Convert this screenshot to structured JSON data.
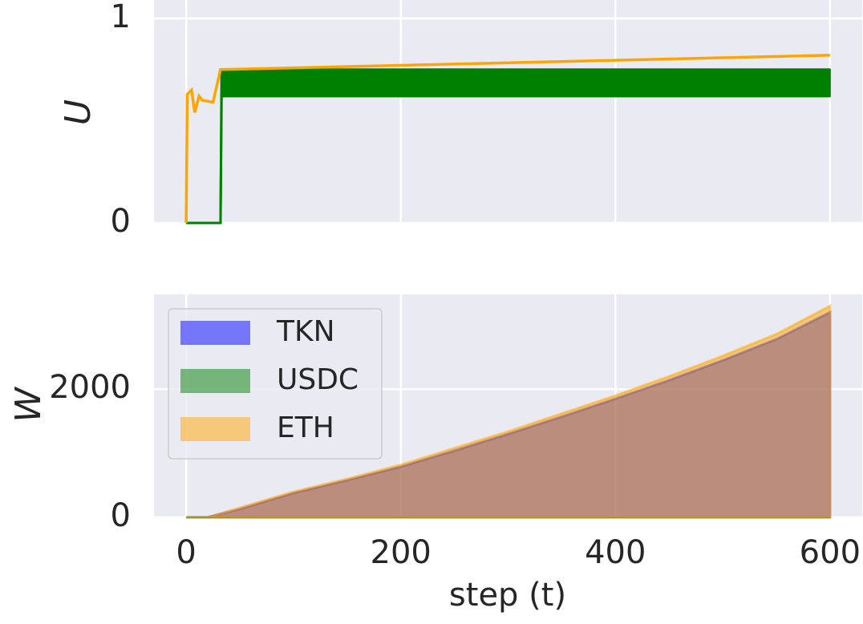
{
  "chart_data": [
    {
      "type": "line",
      "ylabel": "U",
      "xlim": [
        -30,
        630
      ],
      "ylim": [
        0,
        1.09
      ],
      "xticks": [
        0,
        200,
        400,
        600
      ],
      "yticks": [
        0,
        1
      ],
      "grid": true,
      "series": [
        {
          "color": "#008000",
          "x": [
            0,
            32,
            33,
            600
          ],
          "values": [
            0,
            0,
            0.75,
            0.75
          ],
          "lower": [
            0,
            0,
            0.62,
            0.62
          ]
        },
        {
          "color": "#ffa500",
          "x": [
            0,
            1,
            5,
            8,
            12,
            15,
            25,
            32,
            600
          ],
          "values": [
            0,
            0.63,
            0.65,
            0.54,
            0.62,
            0.6,
            0.59,
            0.75,
            0.82
          ]
        }
      ]
    },
    {
      "type": "area",
      "ylabel": "W",
      "xlabel": "step (t)",
      "xlim": [
        -30,
        630
      ],
      "ylim": [
        0,
        3480
      ],
      "xticks": [
        0,
        200,
        400,
        600
      ],
      "yticks": [
        0,
        2000
      ],
      "grid": true,
      "legend": "upper left",
      "series": [
        {
          "name": "TKN",
          "color": "#0000ff",
          "x": [
            0,
            20,
            50,
            100,
            150,
            200,
            250,
            300,
            350,
            400,
            450,
            500,
            550,
            600
          ],
          "values": [
            0,
            0,
            130,
            380,
            580,
            790,
            1040,
            1300,
            1570,
            1850,
            2140,
            2450,
            2780,
            3200
          ]
        },
        {
          "name": "USDC",
          "color": "#008000",
          "x": [
            0,
            600
          ],
          "values": [
            0,
            0
          ]
        },
        {
          "name": "ETH",
          "color": "#ffa500",
          "x": [
            0,
            20,
            50,
            100,
            150,
            200,
            250,
            300,
            350,
            400,
            450,
            500,
            550,
            600
          ],
          "values": [
            0,
            0,
            150,
            400,
            600,
            820,
            1080,
            1340,
            1620,
            1900,
            2200,
            2520,
            2860,
            3300
          ]
        }
      ]
    }
  ]
}
